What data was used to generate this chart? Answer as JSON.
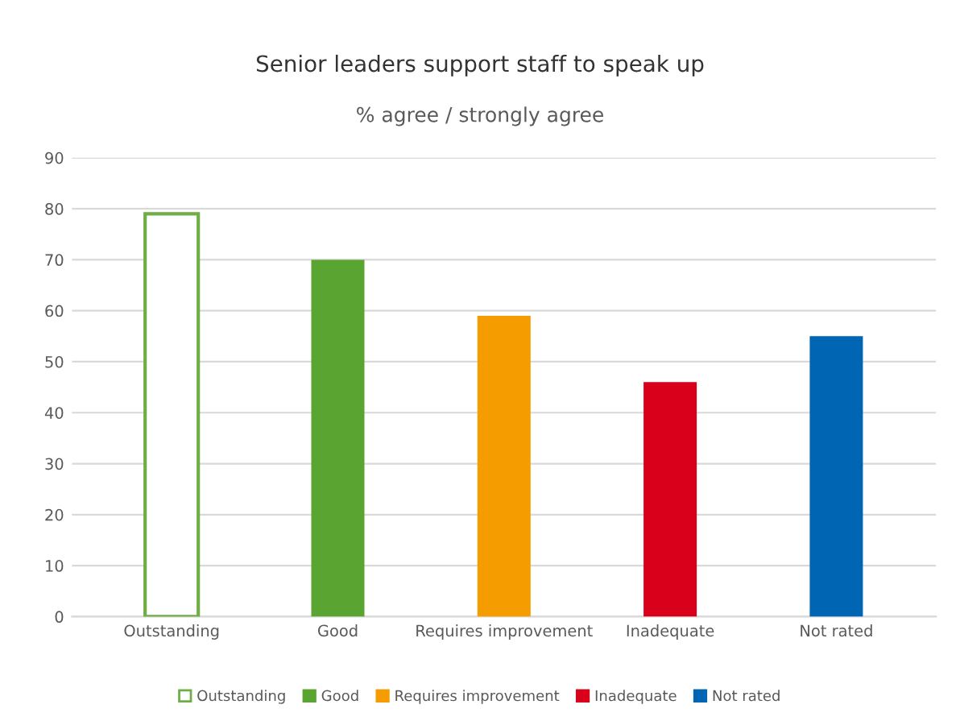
{
  "chart_data": {
    "type": "bar",
    "title": "Senior leaders support staff to speak up",
    "subtitle": "% agree / strongly agree",
    "categories": [
      "Outstanding",
      "Good",
      "Requires improvement",
      "Inadequate",
      "Not rated"
    ],
    "series": [
      {
        "name": "Outstanding",
        "color": "#ffffff",
        "values": [
          79,
          null,
          null,
          null,
          null
        ]
      },
      {
        "name": "Good",
        "color": "#5aa532",
        "values": [
          null,
          70,
          null,
          null,
          null
        ]
      },
      {
        "name": "Requires improvement",
        "color": "#f59c00",
        "values": [
          null,
          null,
          59,
          null,
          null
        ]
      },
      {
        "name": "Inadequate",
        "color": "#d9001b",
        "values": [
          null,
          null,
          null,
          46,
          null
        ]
      },
      {
        "name": "Not rated",
        "color": "#0066b3",
        "values": [
          null,
          null,
          null,
          null,
          55
        ]
      }
    ],
    "ylim": [
      0,
      90
    ],
    "yticks": [
      0,
      10,
      20,
      30,
      40,
      50,
      60,
      70,
      80,
      90
    ],
    "grid": "y",
    "legend": "bottom"
  }
}
